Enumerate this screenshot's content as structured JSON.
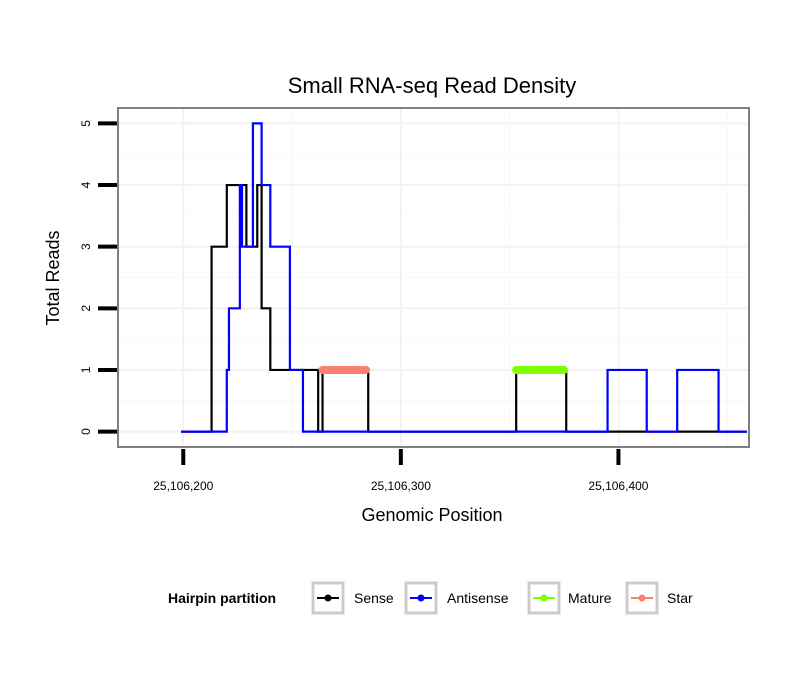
{
  "chart_data": {
    "type": "line",
    "title": "Small RNA-seq Read Density",
    "xlabel": "Genomic Position",
    "ylabel": "Total Reads",
    "xlim": [
      25106170,
      25106460
    ],
    "ylim": [
      -0.25,
      5.25
    ],
    "x_ticks": [
      25106200,
      25106300,
      25106400
    ],
    "x_tick_labels": [
      "25,106,200",
      "25,106,300",
      "25,106,400"
    ],
    "y_ticks": [
      0,
      1,
      2,
      3,
      4,
      5
    ],
    "y_tick_labels": [
      "0",
      "1",
      "2",
      "3",
      "4",
      "5"
    ],
    "grid": true,
    "legend": {
      "title": "Hairpin partition",
      "position": "bottom",
      "entries": [
        "Sense",
        "Antisense",
        "Mature",
        "Star"
      ]
    },
    "series": [
      {
        "name": "Sense",
        "color": "#000000",
        "step": true,
        "x": [
          25106199,
          25106213,
          25106220,
          25106227,
          25106229,
          25106234,
          25106236,
          25106240,
          25106243,
          25106262,
          25106264,
          25106285,
          25106351,
          25106353,
          25106376,
          25106459
        ],
        "y": [
          0,
          3,
          4,
          4,
          3,
          4,
          2,
          1,
          1,
          0,
          1,
          0,
          0,
          1,
          0,
          0
        ]
      },
      {
        "name": "Antisense",
        "color": "#0000ff",
        "step": true,
        "x": [
          25106199,
          25106218,
          25106220,
          25106221,
          25106226,
          25106227,
          25106232,
          25106236,
          25106240,
          25106243,
          25106249,
          25106255,
          25106395,
          25106413,
          25106427,
          25106446,
          25106459
        ],
        "y": [
          0,
          0,
          1,
          2,
          4,
          3,
          5,
          4,
          3,
          3,
          1,
          0,
          1,
          0,
          1,
          0,
          0
        ]
      },
      {
        "name": "Mature",
        "color": "#7fff00",
        "marker": "point",
        "x_range": [
          25106353,
          25106375
        ],
        "y": 1
      },
      {
        "name": "Star",
        "color": "#fa8072",
        "marker": "point",
        "x_range": [
          25106264,
          25106284
        ],
        "y": 1
      }
    ]
  }
}
